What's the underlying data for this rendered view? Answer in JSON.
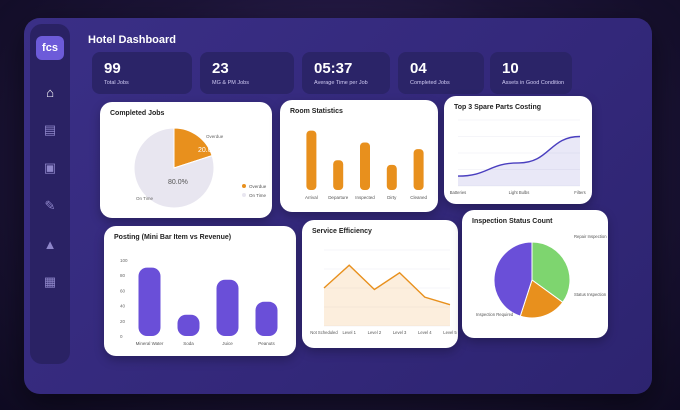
{
  "header": {
    "title": "Hotel Dashboard",
    "logo_text": "fcs"
  },
  "sidebar": {
    "items": [
      {
        "name": "home-icon",
        "glyph": "⌂",
        "active": true
      },
      {
        "name": "document-icon",
        "glyph": "▤",
        "active": false
      },
      {
        "name": "inbox-icon",
        "glyph": "▣",
        "active": false
      },
      {
        "name": "wrench-icon",
        "glyph": "✎",
        "active": false
      },
      {
        "name": "warning-icon",
        "glyph": "▲",
        "active": false
      },
      {
        "name": "calendar-icon",
        "glyph": "▦",
        "active": false
      }
    ]
  },
  "stats": [
    {
      "value": "99",
      "label": "Total Jobs"
    },
    {
      "value": "23",
      "label": "MG & PM Jobs"
    },
    {
      "value": "05:37",
      "label": "Average Time per Job"
    },
    {
      "value": "04",
      "label": "Completed Jobs"
    },
    {
      "value": "10",
      "label": "Assets in Good Condition"
    }
  ],
  "colors": {
    "orange": "#e8901d",
    "purple": "#6a4fd8",
    "green": "#7ed56f",
    "line_blue": "#4a3fbf",
    "pie_grey": "#e8e6f0"
  },
  "completed_jobs": {
    "title": "Completed Jobs",
    "chart_data": {
      "type": "pie",
      "labels": [
        "Overdue",
        "On Time"
      ],
      "values": [
        20.0,
        80.0
      ],
      "value_labels": [
        "20.0%",
        "80.0%"
      ],
      "legend": [
        "Overdue",
        "On Time"
      ]
    }
  },
  "room_statistics": {
    "title": "Room Statistics",
    "chart_data": {
      "type": "bar",
      "categories": [
        "Arrival",
        "Departure",
        "Inspected",
        "Dirty",
        "Cleaned"
      ],
      "values": [
        90,
        45,
        72,
        38,
        62
      ],
      "ylim": [
        0,
        100
      ]
    }
  },
  "spare_parts": {
    "title": "Top 3 Spare Parts Costing",
    "chart_data": {
      "type": "area",
      "categories": [
        "Batteries",
        "Light Bulbs",
        "Filters"
      ],
      "values": [
        15,
        35,
        75
      ],
      "ylim": [
        0,
        100
      ]
    }
  },
  "posting": {
    "title": "Posting (Mini Bar Item vs Revenue)",
    "chart_data": {
      "type": "bar",
      "categories": [
        "Mineral Water",
        "Soda",
        "Juice",
        "Peanuts"
      ],
      "values": [
        90,
        28,
        74,
        45
      ],
      "yticks": [
        "0",
        "20",
        "40",
        "60",
        "80",
        "100"
      ],
      "ylim": [
        0,
        100
      ]
    }
  },
  "service_efficiency": {
    "title": "Service Efficiency",
    "chart_data": {
      "type": "area",
      "categories": [
        "Not Scheduled",
        "Level 1",
        "Level 2",
        "Level 3",
        "Level 4",
        "Level 5"
      ],
      "values": [
        50,
        80,
        48,
        70,
        38,
        28
      ],
      "ylim": [
        0,
        100
      ]
    }
  },
  "inspection_status": {
    "title": "Inspection Status Count",
    "chart_data": {
      "type": "pie",
      "labels": [
        "Repair Inspection",
        "Status Inspection",
        "Inspection Required"
      ],
      "values": [
        35,
        20,
        45
      ],
      "colors": [
        "#7ed56f",
        "#e8901d",
        "#6a4fd8"
      ]
    }
  }
}
